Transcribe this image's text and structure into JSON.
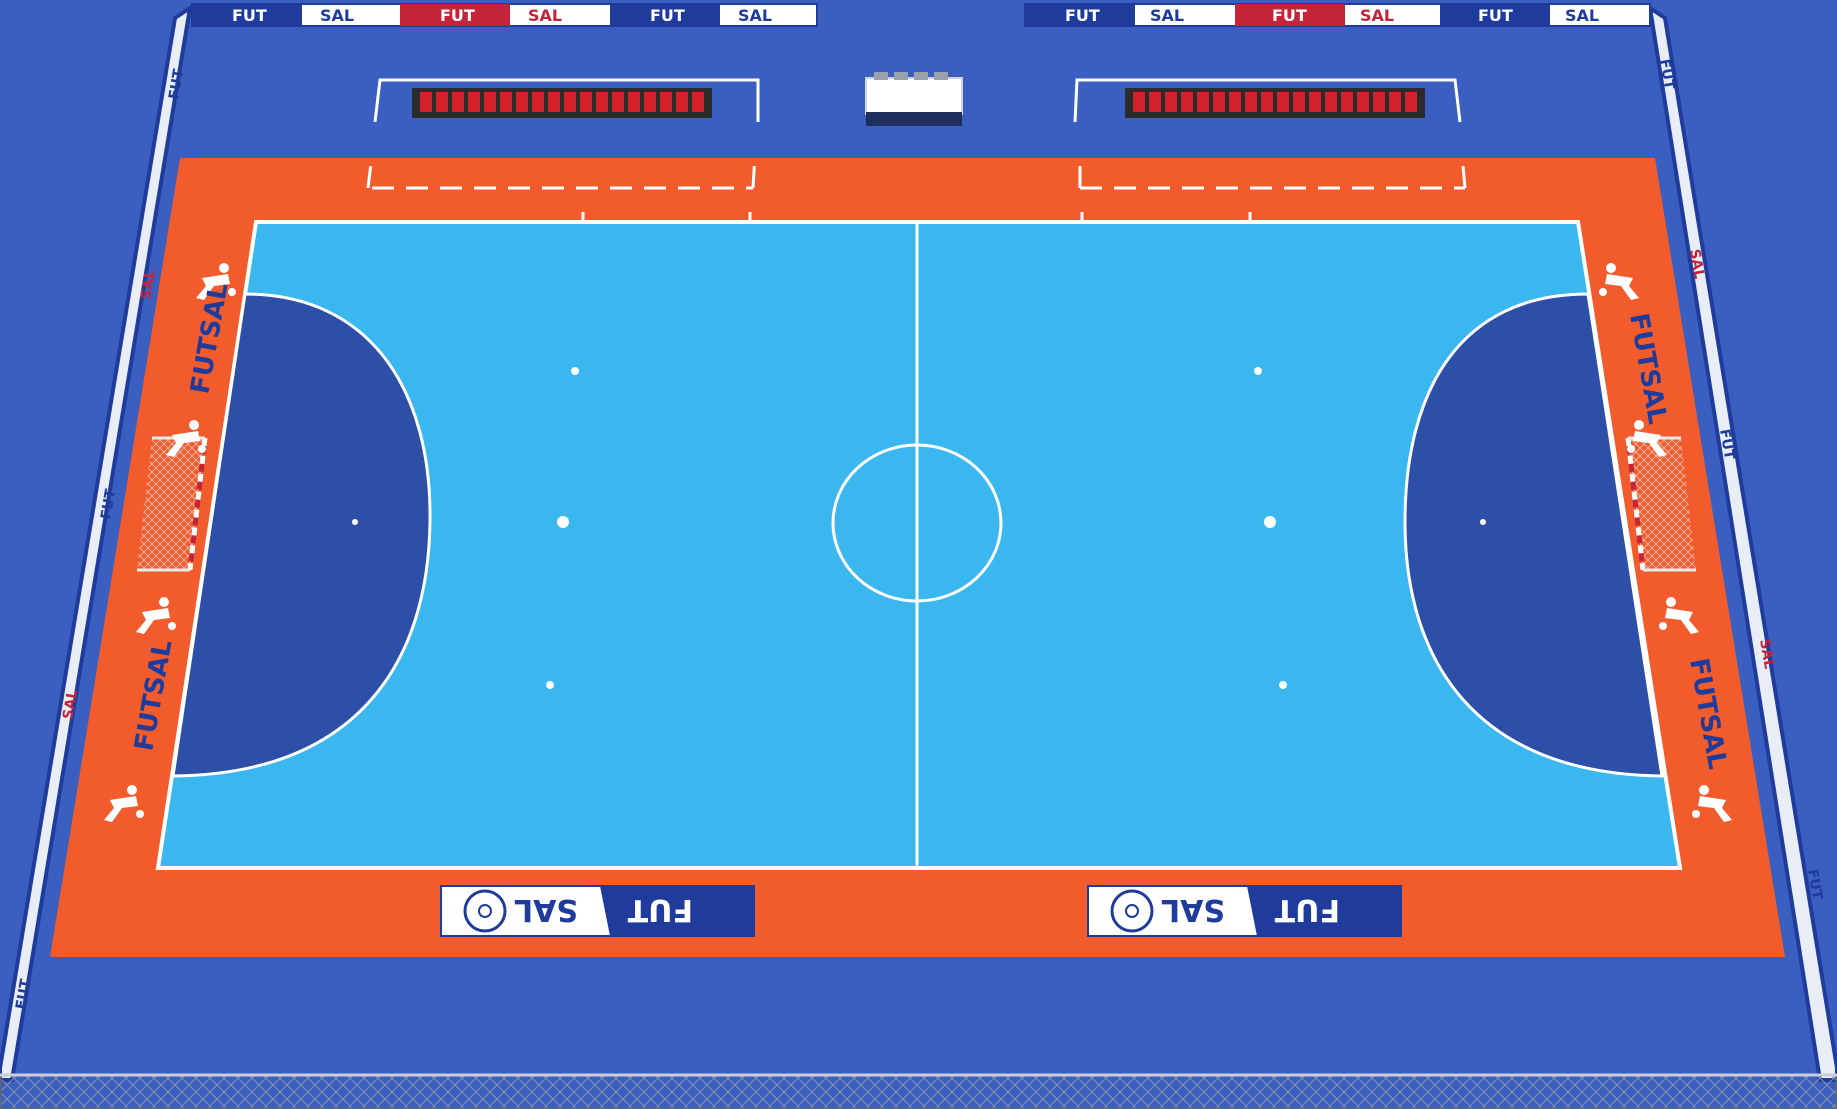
{
  "scene": {
    "banner_top_texts": [
      "FUT",
      "SAL",
      "FUT",
      "SAL",
      "FUT",
      "SAL"
    ],
    "side_brand_left": "FUTSAL",
    "side_brand_right": "FUTSAL",
    "bottom_sign_left": {
      "part_a": "SAL",
      "part_b": "FUT"
    },
    "bottom_sign_right": {
      "part_a": "SAL",
      "part_b": "FUT"
    },
    "board_texts": [
      "FUT",
      "SAL"
    ]
  },
  "colors": {
    "floor": "#3a5fc0",
    "runoff": "#f25c2c",
    "court": "#3ab7ee",
    "penalty_area": "#2e4fa8",
    "lines": "#ffffff",
    "brand_blue": "#1f3c9c",
    "brand_red": "#c4243a",
    "seat_red": "#d3202a"
  }
}
